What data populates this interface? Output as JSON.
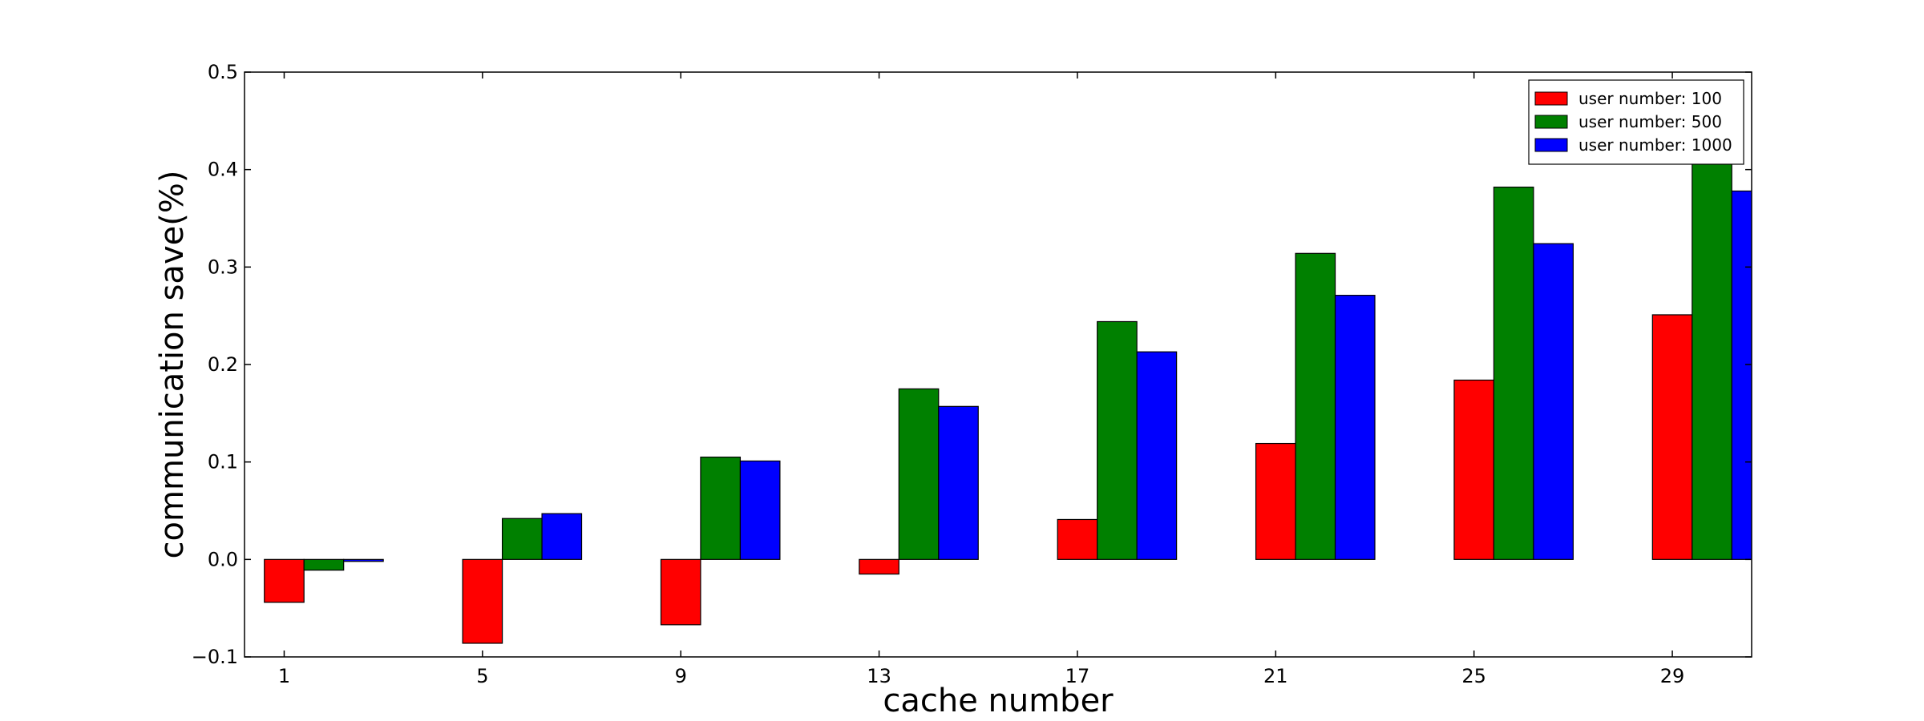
{
  "chart_data": {
    "type": "bar",
    "title": "",
    "xlabel": "cache number",
    "ylabel": "communication save(%)",
    "categories": [
      "1",
      "5",
      "9",
      "13",
      "17",
      "21",
      "25",
      "29"
    ],
    "x": [
      1,
      5,
      9,
      13,
      17,
      21,
      25,
      29
    ],
    "xlim": [
      0.2,
      30.6
    ],
    "ylim": [
      -0.1,
      0.5
    ],
    "yticks": [
      "−0.1",
      "0.0",
      "0.1",
      "0.2",
      "0.3",
      "0.4",
      "0.5"
    ],
    "ytick_values": [
      -0.1,
      0.0,
      0.1,
      0.2,
      0.3,
      0.4,
      0.5
    ],
    "bar_width": 0.8,
    "grid": false,
    "legend_position": "top-right",
    "series": [
      {
        "name": "user number: 100",
        "color": "#ff0000",
        "values": [
          -0.044,
          -0.086,
          -0.067,
          -0.015,
          0.041,
          0.119,
          0.184,
          0.251
        ]
      },
      {
        "name": "user number: 500",
        "color": "#008000",
        "values": [
          -0.011,
          0.042,
          0.105,
          0.175,
          0.244,
          0.314,
          0.382,
          0.45
        ]
      },
      {
        "name": "user number: 1000",
        "color": "#0000ff",
        "values": [
          -0.002,
          0.047,
          0.101,
          0.157,
          0.213,
          0.271,
          0.324,
          0.378
        ]
      }
    ]
  }
}
